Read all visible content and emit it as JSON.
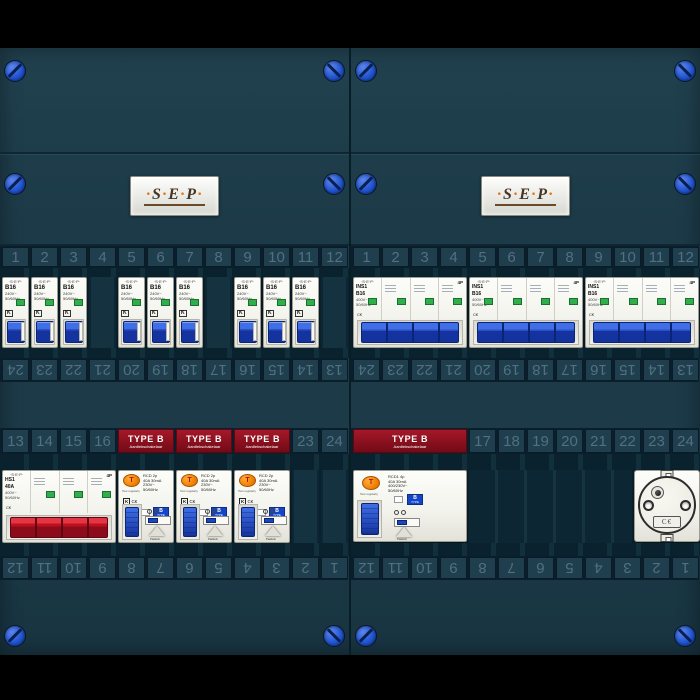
{
  "colors": {
    "black": "#000000",
    "panel": "#1c3a48",
    "panelDark": "#0a222e",
    "slotLight": "#143240",
    "cellBg": "#1f3e4e",
    "cellBorder": "#0a1f2b",
    "numText": "#52707e",
    "screwBlue": "#2257d2",
    "typeBRed": "#8e1220",
    "deviceWhite": "#f4f4ee",
    "toggleBlue": "#1b46c0",
    "toggleRed": "#c01020",
    "indicatorGreen": "#2fae4a",
    "testOrange": "#f07d00",
    "badgeBlue": "#1546c8"
  },
  "enclosure": {
    "logo_text": "·S·E·P·"
  },
  "strips": {
    "top_numbers": [
      "1",
      "2",
      "3",
      "4",
      "5",
      "6",
      "7",
      "8",
      "9",
      "10",
      "11",
      "12"
    ],
    "middle_numbers_flipped": [
      "24",
      "23",
      "22",
      "21",
      "20",
      "19",
      "18",
      "17",
      "16",
      "15",
      "14",
      "13"
    ],
    "bottom_numbers_flipped": [
      "12",
      "11",
      "10",
      "9",
      "8",
      "7",
      "6",
      "5",
      "4",
      "3",
      "2",
      "1"
    ],
    "lower_left_cells": [
      {
        "kind": "num",
        "label": "13"
      },
      {
        "kind": "num",
        "label": "14"
      },
      {
        "kind": "num",
        "label": "15"
      },
      {
        "kind": "num",
        "label": "16"
      },
      {
        "kind": "typeb",
        "span": 2
      },
      {
        "kind": "typeb",
        "span": 2
      },
      {
        "kind": "typeb",
        "span": 2
      },
      {
        "kind": "num",
        "label": "23"
      },
      {
        "kind": "num",
        "label": "24"
      }
    ],
    "lower_right_cells": [
      {
        "kind": "typeb",
        "span": 4
      },
      {
        "kind": "num",
        "label": "17"
      },
      {
        "kind": "num",
        "label": "18"
      },
      {
        "kind": "num",
        "label": "19"
      },
      {
        "kind": "num",
        "label": "20"
      },
      {
        "kind": "num",
        "label": "21"
      },
      {
        "kind": "num",
        "label": "22"
      },
      {
        "kind": "num",
        "label": "23"
      },
      {
        "kind": "num",
        "label": "24"
      }
    ]
  },
  "type_b_sticker": {
    "title": "TYPE B",
    "subtitle": "Aardlekschakelaar"
  },
  "devices": {
    "mcb_1p": {
      "brand": "·S·E·P·",
      "model": "B16",
      "spec1": "240V~",
      "spec2": "50/60Hz",
      "mark": "K"
    },
    "mcb_4p": {
      "brand": "·S·E·P·",
      "model": "INS1",
      "rating": "B16",
      "poles_label": "4P",
      "spec1": "400V~",
      "spec2": "50/60Hz",
      "marks": "C€"
    },
    "main_switch": {
      "brand": "·S·E·P·",
      "model": "HS1",
      "rating": "40A",
      "poles_label": "4P",
      "spec1": "400V~",
      "spec2": "50/60Hz",
      "marks": "C€"
    },
    "rcd_2p": {
      "brand": "·S·E·P·",
      "model": "RCD",
      "rating": "40A",
      "poles": "2p",
      "sensitivity": "30mA",
      "spec1": "230V~",
      "spec2": "50/60Hz",
      "test_button": "T",
      "test_note": "Test regularly",
      "mark_k": "K",
      "mark_ce": "C€",
      "type_badge": "B TYPE",
      "padlock_label": "Padlock"
    },
    "rcd_4p": {
      "brand": "·S·E·P·",
      "model": "RCD1",
      "rating": "40A",
      "poles": "4p",
      "sensitivity": "30mA",
      "spec1": "400/230V~",
      "spec2": "50/60Hz",
      "test_button": "T",
      "test_note": "Test regularly",
      "mark_k": "K",
      "mark_ce": "C€",
      "type_badge": "B TYPE",
      "padlock_label": "Padlock"
    },
    "socket": {
      "mark": "C€"
    }
  },
  "composition": {
    "row1_left": [
      "mcb1p",
      "mcb1p",
      "mcb1p",
      "slot",
      "mcb1p",
      "mcb1p",
      "mcb1p",
      "slot",
      "mcb1p",
      "mcb1p",
      "mcb1p",
      "slot"
    ],
    "row1_right": [
      "mcb4p",
      "mcb4p",
      "mcb4p"
    ],
    "row2_left": [
      "main",
      "rcd2p",
      "rcd2p",
      "rcd2p",
      "slot",
      "slot"
    ],
    "row2_right": [
      "rcd4p",
      "rail",
      "socket"
    ]
  }
}
